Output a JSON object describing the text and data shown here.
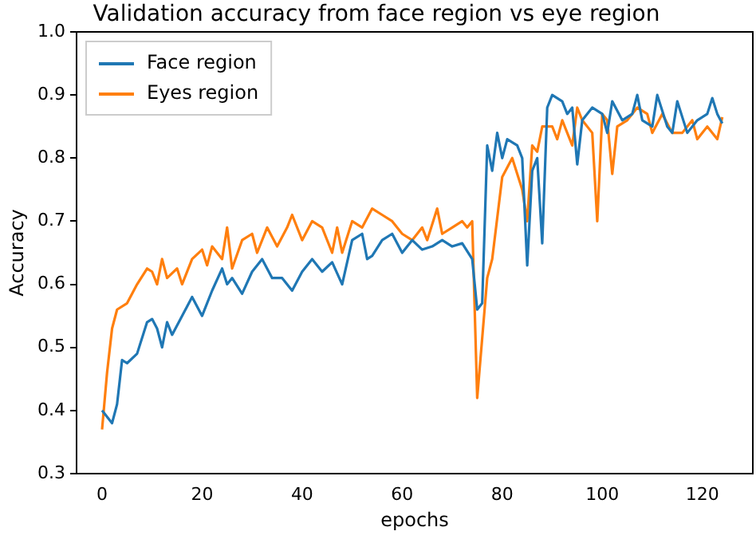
{
  "chart_data": {
    "type": "line",
    "title": "Validation accuracy from face region vs eye region",
    "xlabel": "epochs",
    "ylabel": "Accuracy",
    "xlim": [
      -5.1,
      130.1
    ],
    "xticks": [
      0,
      20,
      40,
      60,
      80,
      100,
      120
    ],
    "ylim": [
      0.3,
      1.0
    ],
    "yticks": [
      0.3,
      0.4,
      0.5,
      0.6,
      0.7,
      0.8,
      0.9,
      {
        "value": 1.0,
        "label": "1.0"
      }
    ],
    "grid": false,
    "legend": "top left",
    "series": [
      {
        "name": "Face region",
        "color": "#1f77b4",
        "x": [
          0,
          2,
          3,
          4,
          5,
          7,
          9,
          10,
          11,
          12,
          13,
          14,
          16,
          18,
          20,
          22,
          24,
          25,
          26,
          28,
          30,
          32,
          34,
          36,
          38,
          40,
          42,
          44,
          46,
          48,
          50,
          52,
          53,
          54,
          56,
          58,
          60,
          62,
          64,
          66,
          68,
          70,
          72,
          74,
          75,
          76,
          77,
          78,
          79,
          80,
          81,
          83,
          84,
          85,
          86,
          87,
          88,
          89,
          90,
          92,
          93,
          94,
          95,
          96,
          98,
          100,
          101,
          102,
          104,
          106,
          107,
          108,
          110,
          111,
          113,
          114,
          115,
          117,
          119,
          121,
          122,
          123,
          124
        ],
        "values": [
          0.4,
          0.38,
          0.41,
          0.48,
          0.475,
          0.49,
          0.54,
          0.545,
          0.53,
          0.5,
          0.54,
          0.52,
          0.55,
          0.58,
          0.55,
          0.59,
          0.625,
          0.6,
          0.61,
          0.585,
          0.62,
          0.64,
          0.61,
          0.61,
          0.59,
          0.62,
          0.64,
          0.62,
          0.635,
          0.6,
          0.67,
          0.68,
          0.64,
          0.645,
          0.67,
          0.68,
          0.65,
          0.67,
          0.655,
          0.66,
          0.67,
          0.66,
          0.665,
          0.64,
          0.56,
          0.57,
          0.82,
          0.78,
          0.84,
          0.8,
          0.83,
          0.82,
          0.8,
          0.63,
          0.78,
          0.8,
          0.665,
          0.88,
          0.9,
          0.89,
          0.87,
          0.88,
          0.79,
          0.86,
          0.88,
          0.87,
          0.84,
          0.89,
          0.86,
          0.87,
          0.9,
          0.86,
          0.85,
          0.9,
          0.85,
          0.84,
          0.89,
          0.84,
          0.86,
          0.87,
          0.895,
          0.87,
          0.855
        ]
      },
      {
        "name": "Eyes region",
        "color": "#ff7f0e",
        "x": [
          0,
          1,
          2,
          3,
          5,
          7,
          9,
          10,
          11,
          12,
          13,
          15,
          16,
          18,
          20,
          21,
          22,
          24,
          25,
          26,
          28,
          30,
          31,
          33,
          35,
          37,
          38,
          40,
          42,
          44,
          46,
          47,
          48,
          50,
          52,
          54,
          56,
          58,
          60,
          62,
          64,
          65,
          67,
          68,
          70,
          72,
          73,
          74,
          75,
          77,
          78,
          80,
          82,
          84,
          85,
          86,
          87,
          88,
          90,
          91,
          92,
          94,
          95,
          96,
          98,
          99,
          100,
          101,
          102,
          103,
          105,
          107,
          109,
          110,
          112,
          114,
          116,
          118,
          119,
          121,
          123,
          124
        ],
        "values": [
          0.37,
          0.46,
          0.53,
          0.56,
          0.57,
          0.6,
          0.625,
          0.62,
          0.6,
          0.64,
          0.61,
          0.625,
          0.6,
          0.64,
          0.655,
          0.63,
          0.66,
          0.64,
          0.69,
          0.625,
          0.67,
          0.68,
          0.65,
          0.69,
          0.66,
          0.69,
          0.71,
          0.67,
          0.7,
          0.69,
          0.65,
          0.69,
          0.65,
          0.7,
          0.69,
          0.72,
          0.71,
          0.7,
          0.68,
          0.67,
          0.69,
          0.67,
          0.72,
          0.68,
          0.69,
          0.7,
          0.69,
          0.7,
          0.42,
          0.61,
          0.64,
          0.77,
          0.8,
          0.75,
          0.7,
          0.82,
          0.81,
          0.85,
          0.85,
          0.83,
          0.86,
          0.82,
          0.88,
          0.86,
          0.84,
          0.7,
          0.87,
          0.86,
          0.775,
          0.85,
          0.86,
          0.88,
          0.87,
          0.84,
          0.87,
          0.84,
          0.84,
          0.86,
          0.83,
          0.85,
          0.83,
          0.865
        ]
      }
    ]
  }
}
